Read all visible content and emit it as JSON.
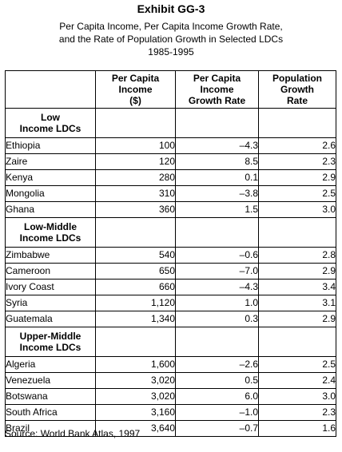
{
  "exhibit_title": "Exhibit GG-3",
  "subtitle_lines": [
    "Per Capita Income, Per Capita Income Growth Rate,",
    "and the Rate of Population Growth in Selected LDCs",
    "1985-1995"
  ],
  "headers": {
    "income": [
      "Per Capita",
      "Income",
      "($)"
    ],
    "growth": [
      "Per Capita",
      "Income",
      "Growth Rate"
    ],
    "population": [
      "Population",
      "Growth",
      "Rate"
    ]
  },
  "groups": [
    {
      "label": [
        "Low",
        "Income LDCs"
      ],
      "rows": [
        {
          "country": "Ethiopia",
          "income": "100",
          "growth": "–4.3",
          "pop": "2.6"
        },
        {
          "country": "Zaire",
          "income": "120",
          "growth": "8.5",
          "pop": "2.3"
        },
        {
          "country": "Kenya",
          "income": "280",
          "growth": "0.1",
          "pop": "2.9"
        },
        {
          "country": "Mongolia",
          "income": "310",
          "growth": "–3.8",
          "pop": "2.5"
        },
        {
          "country": "Ghana",
          "income": "360",
          "growth": "1.5",
          "pop": "3.0"
        }
      ]
    },
    {
      "label": [
        "Low-Middle",
        "Income LDCs"
      ],
      "rows": [
        {
          "country": "Zimbabwe",
          "income": "540",
          "growth": "–0.6",
          "pop": "2.8"
        },
        {
          "country": "Cameroon",
          "income": "650",
          "growth": "–7.0",
          "pop": "2.9"
        },
        {
          "country": "Ivory Coast",
          "income": "660",
          "growth": "–4.3",
          "pop": "3.4"
        },
        {
          "country": "Syria",
          "income": "1,120",
          "growth": "1.0",
          "pop": "3.1"
        },
        {
          "country": "Guatemala",
          "income": "1,340",
          "growth": "0.3",
          "pop": "2.9"
        }
      ]
    },
    {
      "label": [
        "Upper-Middle",
        "Income LDCs"
      ],
      "rows": [
        {
          "country": "Algeria",
          "income": "1,600",
          "growth": "–2.6",
          "pop": "2.5"
        },
        {
          "country": "Venezuela",
          "income": "3,020",
          "growth": "0.5",
          "pop": "2.4"
        },
        {
          "country": "Botswana",
          "income": "3,020",
          "growth": "6.0",
          "pop": "3.0"
        },
        {
          "country": "South Africa",
          "income": "3,160",
          "growth": "–1.0",
          "pop": "2.3"
        },
        {
          "country": "Brazil",
          "income": "3,640",
          "growth": "–0.7",
          "pop": "1.6"
        }
      ]
    }
  ],
  "source": "Source: World Bank Atlas, 1997"
}
